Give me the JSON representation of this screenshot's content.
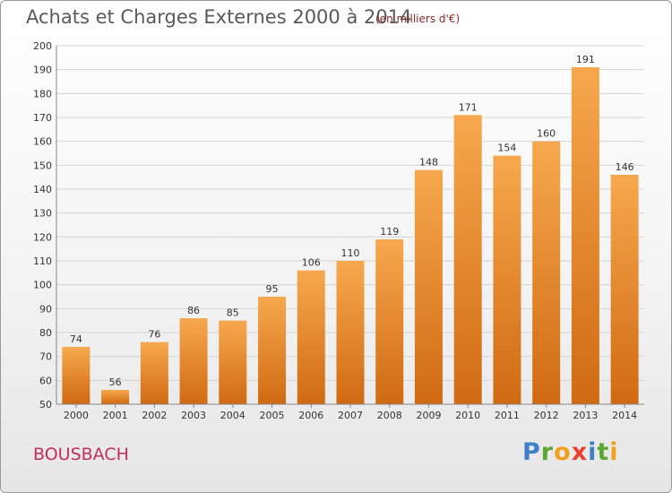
{
  "header": {
    "title": "Achats et Charges Externes 2000 à 2014",
    "subtitle": "(en milliers d'€)"
  },
  "footer": {
    "town": "BOUSBACH",
    "logo": "Proxiti"
  },
  "colors": {
    "bar_light": "#f7a84e",
    "bar_dark": "#d06a12",
    "grid": "#d4d4d4",
    "axis_text": "#333333",
    "town": "#c0305a",
    "logo_letters": [
      "#3f7fc8",
      "#5aa832",
      "#f2a01c",
      "#e8402a",
      "#3f7fc8",
      "#5aa832",
      "#f2a01c"
    ]
  },
  "chart_data": {
    "type": "bar",
    "categories": [
      "2000",
      "2001",
      "2002",
      "2003",
      "2004",
      "2005",
      "2006",
      "2007",
      "2008",
      "2009",
      "2010",
      "2011",
      "2012",
      "2013",
      "2014"
    ],
    "values": [
      74,
      56,
      76,
      86,
      85,
      95,
      106,
      110,
      119,
      148,
      171,
      154,
      160,
      191,
      146
    ],
    "title": "Achats et Charges Externes 2000 à 2014",
    "subtitle": "(en milliers d'€)",
    "xlabel": "",
    "ylabel": "",
    "ylim": [
      50,
      200
    ],
    "yticks": [
      50,
      60,
      70,
      80,
      90,
      100,
      110,
      120,
      130,
      140,
      150,
      160,
      170,
      180,
      190,
      200
    ],
    "grid": true,
    "data_labels": true
  }
}
